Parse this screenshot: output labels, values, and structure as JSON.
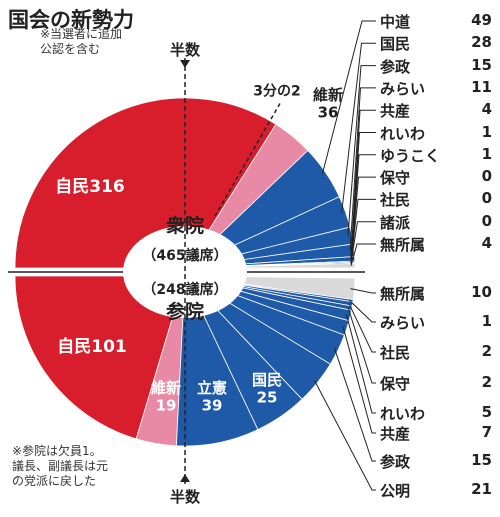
{
  "title": "国会の新勢力",
  "note_top": "※当選者に追加\n公認を含む",
  "note_bottom": "※参院は欠員1。\n議長、副議長は元\nの党派に戻した",
  "half_label_top": "半数",
  "half_label_bottom": "半数",
  "two_thirds_label": "3分の2",
  "colors": {
    "ldp": "#d81e2c",
    "ishin": "#e88aa6",
    "opp": "#1f5aa8",
    "other": "#d9d9d9",
    "text_on_dark": "#ffffff"
  },
  "chart_data": [
    {
      "type": "pie",
      "title": "衆院",
      "subtitle": "（465議席）",
      "total": 465,
      "slices": [
        {
          "label": "自民",
          "value": 316,
          "color": "#d81e2c",
          "inner_label": "自民316"
        },
        {
          "label": "維新",
          "value": 36,
          "color": "#e88aa6",
          "outer_label": "維新\n36"
        },
        {
          "label": "中道",
          "value": 49,
          "color": "#1f5aa8"
        },
        {
          "label": "国民",
          "value": 28,
          "color": "#1f5aa8"
        },
        {
          "label": "参政",
          "value": 15,
          "color": "#1f5aa8"
        },
        {
          "label": "みらい",
          "value": 11,
          "color": "#1f5aa8"
        },
        {
          "label": "共産",
          "value": 4,
          "color": "#1f5aa8"
        },
        {
          "label": "れいわ",
          "value": 1,
          "color": "#1f5aa8"
        },
        {
          "label": "ゆうこく",
          "value": 1,
          "color": "#1f5aa8"
        },
        {
          "label": "保守",
          "value": 0,
          "color": "#1f5aa8"
        },
        {
          "label": "社民",
          "value": 0,
          "color": "#1f5aa8"
        },
        {
          "label": "諸派",
          "value": 0,
          "color": "#1f5aa8"
        },
        {
          "label": "無所属",
          "value": 4,
          "color": "#d9d9d9"
        }
      ],
      "legend": [
        {
          "label": "中道",
          "value": "49"
        },
        {
          "label": "国民",
          "value": "28"
        },
        {
          "label": "参政",
          "value": "15"
        },
        {
          "label": "みらい",
          "value": "11"
        },
        {
          "label": "共産",
          "value": "4"
        },
        {
          "label": "れいわ",
          "value": "1"
        },
        {
          "label": "ゆうこく",
          "value": "1"
        },
        {
          "label": "保守",
          "value": "0"
        },
        {
          "label": "社民",
          "value": "0"
        },
        {
          "label": "諸派",
          "value": "0"
        },
        {
          "label": "無所属",
          "value": "4"
        }
      ]
    },
    {
      "type": "pie",
      "title": "参院",
      "subtitle": "（248議席）",
      "total": 248,
      "slices": [
        {
          "label": "自民",
          "value": 101,
          "color": "#d81e2c",
          "inner_label": "自民101"
        },
        {
          "label": "維新",
          "value": 19,
          "color": "#e88aa6",
          "inner_label": "維新\n19"
        },
        {
          "label": "立憲",
          "value": 39,
          "color": "#1f5aa8",
          "inner_label": "立憲\n39"
        },
        {
          "label": "国民",
          "value": 25,
          "color": "#1f5aa8",
          "inner_label": "国民\n25"
        },
        {
          "label": "公明",
          "value": 21,
          "color": "#1f5aa8"
        },
        {
          "label": "参政",
          "value": 15,
          "color": "#1f5aa8"
        },
        {
          "label": "共産",
          "value": 7,
          "color": "#1f5aa8"
        },
        {
          "label": "れいわ",
          "value": 5,
          "color": "#1f5aa8"
        },
        {
          "label": "保守",
          "value": 2,
          "color": "#1f5aa8"
        },
        {
          "label": "社民",
          "value": 2,
          "color": "#1f5aa8"
        },
        {
          "label": "みらい",
          "value": 1,
          "color": "#1f5aa8"
        },
        {
          "label": "無所属",
          "value": 10,
          "color": "#d9d9d9"
        }
      ],
      "legend": [
        {
          "label": "無所属",
          "value": "10"
        },
        {
          "label": "みらい",
          "value": "1"
        },
        {
          "label": "社民",
          "value": "2"
        },
        {
          "label": "保守",
          "value": "2"
        },
        {
          "label": "れいわ",
          "value": "5"
        },
        {
          "label": "共産",
          "value": "7"
        },
        {
          "label": "参政",
          "value": "15"
        },
        {
          "label": "公明",
          "value": "21"
        }
      ]
    }
  ]
}
